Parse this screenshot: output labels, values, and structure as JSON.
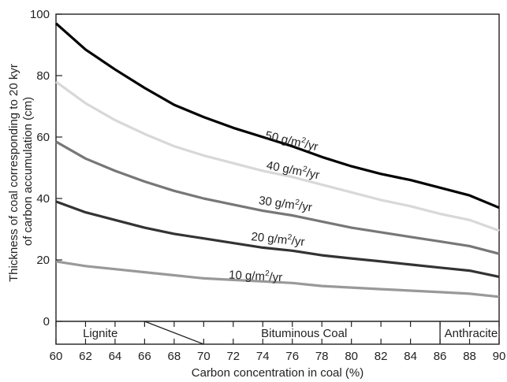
{
  "chart_data": {
    "type": "line",
    "xlabel": "Carbon concentration in coal (%)",
    "ylabel": [
      "Thickness of coal corresponding to 20 kyr",
      "of carbon accumulation (cm)"
    ],
    "xlim": [
      60,
      90
    ],
    "ylim": [
      0,
      100
    ],
    "x_ticks": [
      "60",
      "62",
      "64",
      "66",
      "68",
      "70",
      "72",
      "74",
      "76",
      "78",
      "80",
      "82",
      "84",
      "86",
      "88",
      "90"
    ],
    "y_ticks": [
      "0",
      "20",
      "40",
      "60",
      "80",
      "100"
    ],
    "x": [
      60,
      62,
      64,
      66,
      68,
      70,
      72,
      74,
      76,
      78,
      80,
      82,
      84,
      86,
      88,
      90
    ],
    "series": [
      {
        "label_base": "50 g/m",
        "label_sup": "2",
        "label_tail": "/yr",
        "color": "#000000",
        "values": [
          97,
          88.5,
          82,
          76,
          70.5,
          66.5,
          63,
          60,
          57,
          53.5,
          50.5,
          48,
          46,
          43.5,
          41,
          37
        ],
        "label_at": [
          75.9,
          57.5
        ],
        "label_rotate": 13
      },
      {
        "label_base": "40 g/m",
        "label_sup": "2",
        "label_tail": "/yr",
        "color": "#d8d8d8",
        "values": [
          78,
          71,
          65.5,
          61,
          57,
          54,
          51.5,
          49,
          47,
          44.5,
          42,
          39.5,
          37.5,
          35,
          33,
          29.5
        ],
        "label_at": [
          76.0,
          48.0
        ],
        "label_rotate": 11
      },
      {
        "label_base": "30 g/m",
        "label_sup": "2",
        "label_tail": "/yr",
        "color": "#777777",
        "values": [
          58.5,
          53,
          49,
          45.5,
          42.5,
          40,
          38,
          36,
          34.5,
          32.5,
          30.5,
          29,
          27.5,
          26,
          24.5,
          22
        ],
        "label_at": [
          75.5,
          37.0
        ],
        "label_rotate": 8
      },
      {
        "label_base": "20 g/m",
        "label_sup": "2",
        "label_tail": "/yr",
        "color": "#333333",
        "values": [
          39,
          35.5,
          33,
          30.5,
          28.5,
          27,
          25.5,
          24,
          23,
          21.5,
          20.5,
          19.5,
          18.5,
          17.5,
          16.5,
          14.5
        ],
        "label_at": [
          75.0,
          25.5
        ],
        "label_rotate": 6
      },
      {
        "label_base": "10 g/m",
        "label_sup": "2",
        "label_tail": "/yr",
        "color": "#999999",
        "values": [
          19.5,
          18,
          17,
          16,
          15,
          14,
          13.5,
          13,
          12.5,
          11.5,
          11,
          10.5,
          10,
          9.5,
          9,
          8
        ],
        "label_at": [
          73.5,
          13.5
        ],
        "label_rotate": 3
      }
    ],
    "bands": [
      {
        "label": "Lignite",
        "label_center": 63.0
      },
      {
        "label": "Bituminous Coal",
        "label_center": 76.8
      },
      {
        "label": "Anthracite",
        "label_center": 88.1
      }
    ],
    "band_dividers": {
      "lignite_top": 66,
      "lignite_bottom": 70,
      "anthracite": 86
    }
  }
}
